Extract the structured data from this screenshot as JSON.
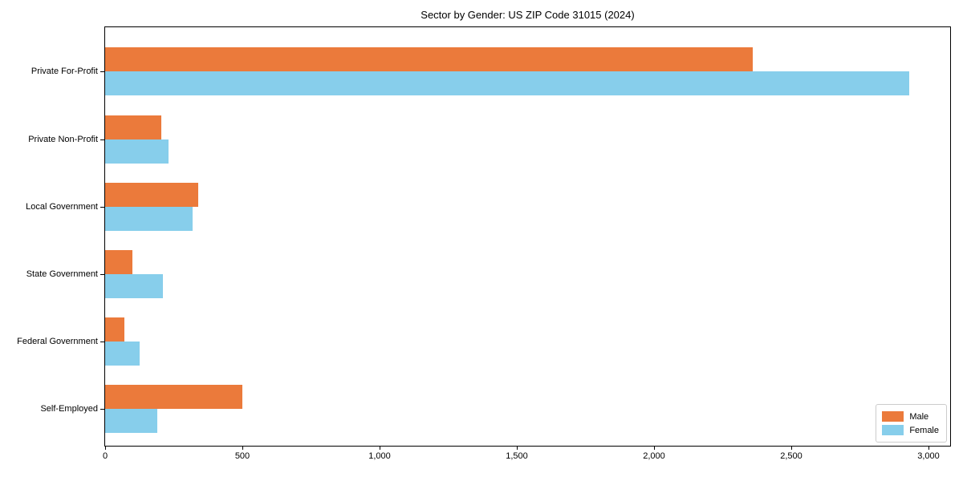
{
  "title": "Sector by Gender: US ZIP Code 31015 (2024)",
  "chart_data": {
    "type": "bar",
    "orientation": "horizontal",
    "title": "Sector by Gender: US ZIP Code 31015 (2024)",
    "categories": [
      "Private For-Profit",
      "Private Non-Profit",
      "Local Government",
      "State Government",
      "Federal Government",
      "Self-Employed"
    ],
    "series": [
      {
        "name": "Male",
        "color": "#EB7A3B",
        "values": [
          2360,
          205,
          340,
          100,
          70,
          500
        ]
      },
      {
        "name": "Female",
        "color": "#87CEEB",
        "values": [
          2930,
          230,
          320,
          210,
          125,
          190
        ]
      }
    ],
    "xlabel": "",
    "ylabel": "",
    "xlim": [
      0,
      3080
    ],
    "xticks": [
      0,
      500,
      1000,
      1500,
      2000,
      2500,
      3000
    ],
    "xtick_labels": [
      "0",
      "500",
      "1,000",
      "1,500",
      "2,000",
      "2,500",
      "3,000"
    ],
    "legend_position": "lower right",
    "grid": false,
    "plot_border_color": "#000000",
    "background_color": "#ffffff"
  }
}
